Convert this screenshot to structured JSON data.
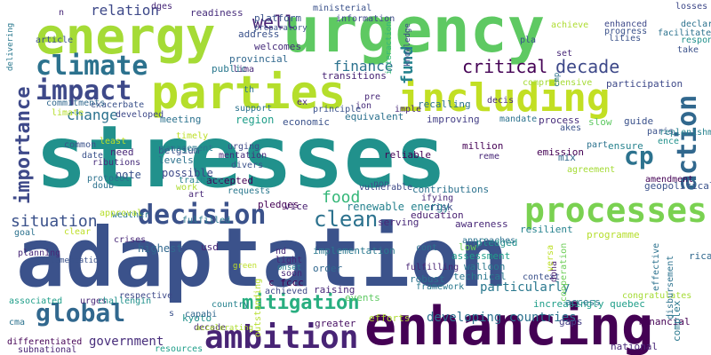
{
  "words": [
    {
      "text": "stresses",
      "color": "#21918c"
    },
    {
      "text": "adaptation",
      "color": "#3b528b"
    },
    {
      "text": "urgency",
      "color": "#5ec962"
    },
    {
      "text": "enhancing",
      "color": "#440154"
    },
    {
      "text": "energy",
      "color": "#a5db36"
    },
    {
      "text": "parties",
      "color": "#b5de2b"
    },
    {
      "text": "including",
      "color": "#c2df23"
    },
    {
      "text": "processes",
      "color": "#7ad151"
    },
    {
      "text": "ambition",
      "color": "#482475"
    },
    {
      "text": "decision",
      "color": "#3b528b"
    },
    {
      "text": "impact",
      "color": "#3e4989"
    },
    {
      "text": "climate",
      "color": "#2c728e"
    },
    {
      "text": "global",
      "color": "#31688e"
    },
    {
      "text": "mitigation",
      "color": "#28ae80"
    },
    {
      "text": "action",
      "color": "#31688e"
    },
    {
      "text": "cp",
      "color": "#2c728e"
    },
    {
      "text": "importance",
      "color": "#3e4989"
    },
    {
      "text": "critical",
      "color": "#440154"
    },
    {
      "text": "decade",
      "color": "#3e4989"
    },
    {
      "text": "situation",
      "color": "#3b528b"
    },
    {
      "text": "clean",
      "color": "#2c728e"
    },
    {
      "text": "food",
      "color": "#35b779"
    },
    {
      "text": "government",
      "color": "#472d7b"
    },
    {
      "text": "finance",
      "color": "#2c728e"
    },
    {
      "text": "well",
      "color": "#482475"
    },
    {
      "text": "fund",
      "color": "#26828e"
    },
    {
      "text": "relation",
      "color": "#3e4989"
    },
    {
      "text": "change",
      "color": "#2c728e"
    },
    {
      "text": "developing countries",
      "color": "#2c728e"
    },
    {
      "text": "efforts",
      "color": "#addc30"
    },
    {
      "text": "renewable energy",
      "color": "#26828e"
    },
    {
      "text": "implementation",
      "color": "#2a788e"
    },
    {
      "text": "improving",
      "color": "#433e85"
    },
    {
      "text": "process",
      "color": "#472d7b"
    },
    {
      "text": "emission",
      "color": "#440154"
    },
    {
      "text": "assessment",
      "color": "#1f9e89"
    },
    {
      "text": "awareness",
      "color": "#482878"
    },
    {
      "text": "particularly",
      "color": "#2a788e"
    },
    {
      "text": "increasingly quebec",
      "color": "#1f9e89"
    },
    {
      "text": "technical",
      "color": "#2a788e"
    },
    {
      "text": "walloon",
      "color": "#2a788e"
    },
    {
      "text": "events",
      "color": "#5ec962"
    },
    {
      "text": "programme",
      "color": "#b5de2b"
    },
    {
      "text": "reliable",
      "color": "#440154"
    },
    {
      "text": "risk",
      "color": "#3b528b"
    },
    {
      "text": "education",
      "color": "#481f70"
    },
    {
      "text": "resilient",
      "color": "#26828e"
    },
    {
      "text": "economic",
      "color": "#3b528b"
    },
    {
      "text": "equivalent",
      "color": "#2c728e"
    },
    {
      "text": "possible",
      "color": "#3e4989"
    },
    {
      "text": "note",
      "color": "#3b528b"
    },
    {
      "text": "need",
      "color": "#482878"
    },
    {
      "text": "levels",
      "color": "#2c728e"
    },
    {
      "text": "belgium",
      "color": "#3b528b"
    },
    {
      "text": "public",
      "color": "#2a788e"
    },
    {
      "text": "welcomes",
      "color": "#472d7b"
    },
    {
      "text": "provincial",
      "color": "#31688e"
    },
    {
      "text": "address",
      "color": "#3b528b"
    },
    {
      "text": "readiness",
      "color": "#472d7b"
    },
    {
      "text": "platform",
      "color": "#3b528b"
    },
    {
      "text": "transitions",
      "color": "#482475"
    },
    {
      "text": "recalling",
      "color": "#2c728e"
    },
    {
      "text": "region",
      "color": "#1f9e89"
    },
    {
      "text": "meeting",
      "color": "#2c728e"
    },
    {
      "text": "pledges",
      "color": "#440154"
    },
    {
      "text": "vice",
      "color": "#481f70"
    },
    {
      "text": "serving",
      "color": "#482878"
    },
    {
      "text": "million",
      "color": "#440154"
    },
    {
      "text": "mix",
      "color": "#31688e"
    },
    {
      "text": "ensure",
      "color": "#26828e"
    },
    {
      "text": "slow",
      "color": "#5ec962"
    },
    {
      "text": "guide",
      "color": "#3b528b"
    },
    {
      "text": "participation",
      "color": "#3e4989"
    },
    {
      "text": "geopolitical",
      "color": "#3b528b"
    },
    {
      "text": "complex",
      "color": "#2a788e"
    },
    {
      "text": "green",
      "color": "#bddf26"
    },
    {
      "text": "highest",
      "color": "#31688e"
    },
    {
      "text": "usd",
      "color": "#482878"
    },
    {
      "text": "c fccc",
      "color": "#440154"
    },
    {
      "text": "greater",
      "color": "#471063"
    },
    {
      "text": "kyoto",
      "color": "#21918c"
    },
    {
      "text": "raising",
      "color": "#482878"
    },
    {
      "text": "order",
      "color": "#31688e"
    },
    {
      "text": "low",
      "color": "#6ece58"
    },
    {
      "text": "pledged",
      "color": "#21918c"
    },
    {
      "text": "gaps",
      "color": "#433e85"
    },
    {
      "text": "access",
      "color": "#2a788e"
    },
    {
      "text": "national",
      "color": "#482878"
    },
    {
      "text": "financial",
      "color": "#440154"
    },
    {
      "text": "rica",
      "color": "#31688e"
    },
    {
      "text": "effective",
      "color": "#2c728e"
    },
    {
      "text": "congratulates",
      "color": "#a5db36"
    },
    {
      "text": "disbursement",
      "color": "#2c728e"
    },
    {
      "text": "doha",
      "color": "#481f70"
    },
    {
      "text": "cooperation",
      "color": "#6ece58"
    },
    {
      "text": "versa",
      "color": "#bddf26"
    },
    {
      "text": "robust",
      "color": "#2c728e"
    },
    {
      "text": "context",
      "color": "#3b528b"
    },
    {
      "text": "fulfilling",
      "color": "#482475"
    },
    {
      "text": "outstanding",
      "color": "#b5de2b"
    },
    {
      "text": "framework",
      "color": "#2a788e"
    },
    {
      "text": "country",
      "color": "#26828e"
    },
    {
      "text": "decade",
      "color": "#482878"
    },
    {
      "text": "capabi",
      "color": "#31688e"
    },
    {
      "text": "resources",
      "color": "#1f9e89"
    },
    {
      "text": "respective",
      "color": "#3e4989"
    },
    {
      "text": "challengin",
      "color": "#21918c"
    },
    {
      "text": "urges",
      "color": "#482878"
    },
    {
      "text": "associated",
      "color": "#1f9e89"
    },
    {
      "text": "subnational",
      "color": "#482475"
    },
    {
      "text": "cma",
      "color": "#2c728e"
    },
    {
      "text": "planning",
      "color": "#482878"
    },
    {
      "text": "differentiated",
      "color": "#440154"
    },
    {
      "text": "implementatio",
      "color": "#3b528b"
    },
    {
      "text": "goal",
      "color": "#2c728e"
    },
    {
      "text": "clear",
      "color": "#bddf26"
    },
    {
      "text": "crises",
      "color": "#482878"
    },
    {
      "text": "accepted",
      "color": "#440154"
    },
    {
      "text": "weather",
      "color": "#2a788e"
    },
    {
      "text": "approval",
      "color": "#b5de2b"
    },
    {
      "text": "work",
      "color": "#addc30"
    },
    {
      "text": "art",
      "color": "#482878"
    },
    {
      "text": "requests",
      "color": "#2a788e"
    },
    {
      "text": "training",
      "color": "#26828e"
    },
    {
      "text": "common",
      "color": "#3b528b"
    },
    {
      "text": "least",
      "color": "#bddf26"
    },
    {
      "text": "date",
      "color": "#3b528b"
    },
    {
      "text": "ributions",
      "color": "#472d7b"
    },
    {
      "text": "doub",
      "color": "#2c728e"
    },
    {
      "text": "protocol",
      "color": "#2c728e"
    },
    {
      "text": "fulfilled",
      "color": "#2a788e"
    },
    {
      "text": "management",
      "color": "#2a788e"
    },
    {
      "text": "timely",
      "color": "#bddf26"
    },
    {
      "text": "urging",
      "color": "#3e4989"
    },
    {
      "text": "mentation",
      "color": "#472d7b"
    },
    {
      "text": "divers",
      "color": "#3b528b"
    },
    {
      "text": "accelerating",
      "color": "#addc30"
    },
    {
      "text": "onset",
      "color": "#26828e"
    },
    {
      "text": "nd",
      "color": "#482878"
    },
    {
      "text": "light",
      "color": "#482878"
    },
    {
      "text": "soon",
      "color": "#482878"
    },
    {
      "text": "achieved",
      "color": "#3e4989"
    },
    {
      "text": "s",
      "color": "#3b528b"
    },
    {
      "text": "cont",
      "color": "#2c728e"
    },
    {
      "text": "ifying",
      "color": "#482878"
    },
    {
      "text": "contributions",
      "color": "#2c728e"
    },
    {
      "text": "approaches",
      "color": "#2c728e"
    },
    {
      "text": "non",
      "color": "#3b528b"
    },
    {
      "text": "part",
      "color": "#2c728e"
    },
    {
      "text": "replenishment",
      "color": "#26828e"
    },
    {
      "text": "reme",
      "color": "#482878"
    },
    {
      "text": "agreement",
      "color": "#a5db36"
    },
    {
      "text": "amendment",
      "color": "#440154"
    },
    {
      "text": "ence",
      "color": "#21918c"
    },
    {
      "text": "paris",
      "color": "#3b528b"
    },
    {
      "text": "akes",
      "color": "#3b528b"
    },
    {
      "text": "mandate",
      "color": "#2c728e"
    },
    {
      "text": "decis",
      "color": "#472d7b"
    },
    {
      "text": "ion",
      "color": "#472d7b"
    },
    {
      "text": "pre",
      "color": "#482878"
    },
    {
      "text": "imple",
      "color": "#482878"
    },
    {
      "text": "ex",
      "color": "#482878"
    },
    {
      "text": "principle",
      "color": "#3b528b"
    },
    {
      "text": "support",
      "color": "#2c728e"
    },
    {
      "text": "th",
      "color": "#2c728e"
    },
    {
      "text": "vulnerable",
      "color": "#3e4989"
    },
    {
      "text": "developed",
      "color": "#3e4989"
    },
    {
      "text": "exacerbate",
      "color": "#3b528b"
    },
    {
      "text": "commitments",
      "color": "#31688e"
    },
    {
      "text": "limate",
      "color": "#b5de2b"
    },
    {
      "text": "comprehensive",
      "color": "#a5db36"
    },
    {
      "text": "declaration",
      "color": "#2c728e"
    },
    {
      "text": "facilitate",
      "color": "#2c728e"
    },
    {
      "text": "responsibilities",
      "color": "#21918c"
    },
    {
      "text": "take",
      "color": "#3b528b"
    },
    {
      "text": "lities",
      "color": "#3b528b"
    },
    {
      "text": "progress",
      "color": "#3b528b"
    },
    {
      "text": "enhanced",
      "color": "#3e4989"
    },
    {
      "text": "losses",
      "color": "#3e4989"
    },
    {
      "text": "pla",
      "color": "#3b528b"
    },
    {
      "text": "achieve",
      "color": "#addc30"
    },
    {
      "text": "set",
      "color": "#482878"
    },
    {
      "text": "cmp",
      "color": "#2c728e"
    },
    {
      "text": "interaction",
      "color": "#35b779"
    },
    {
      "text": "knowledge",
      "color": "#3e4989"
    },
    {
      "text": "information",
      "color": "#3e4989"
    },
    {
      "text": "ministerial",
      "color": "#3b528b"
    },
    {
      "text": "preparatory",
      "color": "#3b528b"
    },
    {
      "text": "lima",
      "color": "#482878"
    },
    {
      "text": "n",
      "color": "#482878"
    },
    {
      "text": "dges",
      "color": "#482878"
    },
    {
      "text": "delivering",
      "color": "#2a788e"
    },
    {
      "text": "article",
      "color": "#3b528b"
    },
    {
      "text": "circumstances",
      "color": "#addc30"
    },
    {
      "text": "different",
      "color": "#a5db36"
    },
    {
      "text": "e",
      "color": "#3b528b"
    }
  ]
}
